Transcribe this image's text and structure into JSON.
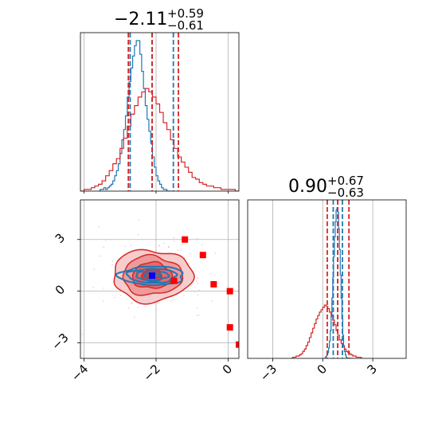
{
  "chart_data": [
    {
      "panel": "marginal-x",
      "type": "histogram",
      "title_main": "−2.11",
      "title_sup": "+0.59",
      "title_sub": "−0.61",
      "xlim": [
        -4.1,
        0.3
      ],
      "series": [
        {
          "color": "#1f77b4",
          "quantile_lines": [
            -2.72,
            -2.11,
            -1.52
          ],
          "bin_edges_start": -3.6,
          "bin_width": 0.05,
          "counts": [
            0,
            1,
            1,
            2,
            1,
            2,
            3,
            4,
            6,
            9,
            12,
            16,
            22,
            30,
            36,
            44,
            55,
            64,
            72,
            79,
            85,
            88,
            88,
            80,
            70,
            60,
            50,
            42,
            35,
            28,
            20,
            14,
            9,
            6,
            4,
            2,
            1,
            1,
            0,
            0
          ]
        },
        {
          "color": "#d62728",
          "quantile_lines": [
            -2.77,
            -2.11,
            -1.38
          ],
          "bin_edges_start": -4.1,
          "bin_width": 0.1,
          "counts": [
            0,
            1,
            1,
            2,
            3,
            4,
            6,
            9,
            12,
            16,
            19,
            25,
            31,
            38,
            45,
            50,
            55,
            58,
            60,
            58,
            55,
            51,
            46,
            40,
            36,
            30,
            25,
            20,
            17,
            14,
            11,
            8,
            7,
            5,
            4,
            3,
            3,
            2,
            2,
            1,
            1,
            1,
            1,
            0
          ]
        }
      ]
    },
    {
      "panel": "joint",
      "type": "contour",
      "xlim": [
        -4.1,
        0.3
      ],
      "ylim": [
        -3.9,
        5.3
      ],
      "xticks": [
        "−4",
        "−2",
        "0"
      ],
      "yticks": [
        "−3",
        "0",
        "3"
      ],
      "series": [
        {
          "name_hint": "red",
          "color": "#d62728",
          "center": [
            -2.11,
            0.9
          ],
          "sigma": [
            0.55,
            0.75
          ],
          "filled": true,
          "levels": [
            0.5,
            1.0,
            1.5,
            2.0
          ]
        },
        {
          "name_hint": "blue",
          "color": "#1f77b4",
          "center": [
            -2.11,
            0.9
          ],
          "sigma": [
            0.45,
            0.27
          ],
          "filled": false,
          "levels": [
            0.5,
            1.0,
            1.5,
            2.0
          ]
        }
      ],
      "markers": {
        "red_squares": [
          [
            -1.2,
            3.0
          ],
          [
            -0.7,
            2.1
          ],
          [
            -1.5,
            0.6
          ],
          [
            -0.4,
            0.4
          ],
          [
            0.05,
            0.0
          ],
          [
            0.05,
            -2.1
          ],
          [
            0.3,
            -3.1
          ]
        ],
        "blue_square": [
          -2.11,
          0.9
        ]
      }
    },
    {
      "panel": "marginal-y",
      "type": "histogram",
      "title_main": "0.90",
      "title_sup": "+0.67",
      "title_sub": "−0.63",
      "xlim": [
        -4.5,
        5.0
      ],
      "xticks": [
        "−3",
        "0",
        "3"
      ],
      "series": [
        {
          "color": "#1f77b4",
          "quantile_lines": [
            0.63,
            0.9,
            1.18
          ],
          "bin_edges_start": 0.1,
          "bin_width": 0.05,
          "counts": [
            0,
            1,
            2,
            3,
            5,
            9,
            15,
            24,
            36,
            52,
            70,
            88,
            105,
            118,
            128,
            130,
            126,
            112,
            94,
            72,
            52,
            34,
            20,
            11,
            6,
            3,
            1,
            0,
            0,
            0,
            0,
            0,
            0,
            0
          ]
        },
        {
          "color": "#d62728",
          "quantile_lines": [
            0.27,
            0.9,
            1.57
          ],
          "bin_edges_start": -1.9,
          "bin_width": 0.1,
          "counts": [
            0,
            1,
            1,
            2,
            2,
            3,
            4,
            6,
            8,
            11,
            14,
            18,
            22,
            26,
            30,
            34,
            37,
            40,
            42,
            44,
            46,
            45,
            43,
            40,
            37,
            33,
            29,
            24,
            20,
            16,
            13,
            10,
            8,
            6,
            5,
            4,
            3,
            2,
            2,
            1,
            1,
            1,
            0
          ]
        }
      ]
    }
  ]
}
